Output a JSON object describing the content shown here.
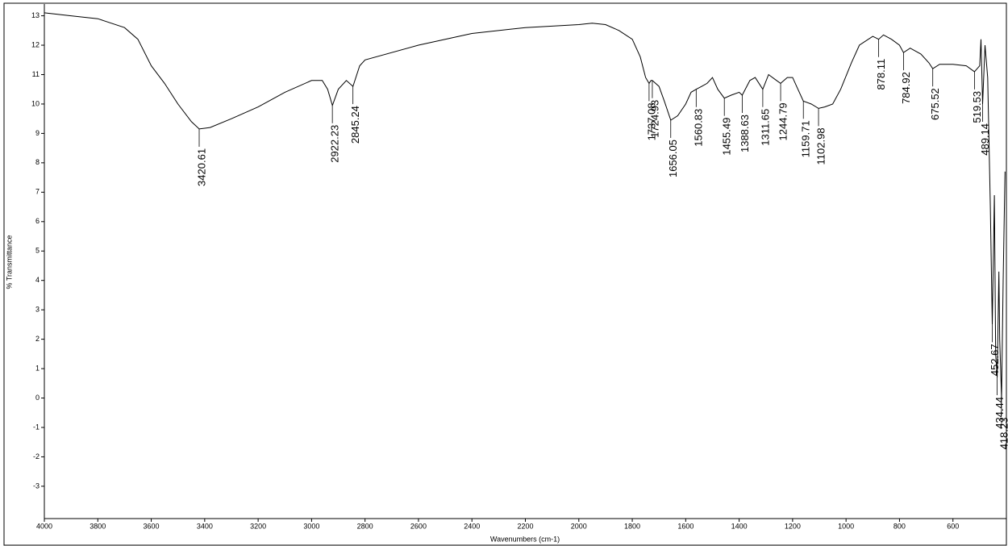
{
  "chart_data": {
    "type": "line",
    "x_label": "Wavenumbers (cm-1)",
    "y_label": "% Transmittance",
    "xlim": [
      4000,
      400
    ],
    "ylim": [
      -4.1,
      13.4
    ],
    "xticks": [
      4000,
      3800,
      3600,
      3400,
      3200,
      3000,
      2800,
      2600,
      2400,
      2200,
      2000,
      1800,
      1600,
      1400,
      1200,
      1000,
      800,
      600
    ],
    "yticks": [
      -3,
      -2,
      -1,
      0,
      1,
      2,
      3,
      4,
      5,
      6,
      7,
      8,
      9,
      10,
      11,
      12,
      13
    ],
    "color": "#000000",
    "x": [
      4000,
      3900,
      3800,
      3700,
      3650,
      3600,
      3550,
      3500,
      3450,
      3420.61,
      3380,
      3300,
      3200,
      3100,
      3000,
      2960,
      2940,
      2922.23,
      2900,
      2870,
      2845.24,
      2820,
      2800,
      2600,
      2400,
      2200,
      2000,
      1950,
      1900,
      1850,
      1800,
      1770,
      1750,
      1737.08,
      1730,
      1724.93,
      1700,
      1680,
      1656.05,
      1630,
      1600,
      1580,
      1560.83,
      1540,
      1520,
      1500,
      1480,
      1455.49,
      1430,
      1400,
      1388.63,
      1360,
      1340,
      1311.65,
      1290,
      1260,
      1244.79,
      1220,
      1200,
      1180,
      1159.71,
      1130,
      1102.98,
      1080,
      1050,
      1020,
      980,
      950,
      900,
      878.11,
      860,
      830,
      800,
      784.92,
      760,
      720,
      690,
      675.52,
      650,
      600,
      550,
      519.53,
      500,
      495,
      489.14,
      480,
      470,
      460,
      452.67,
      445,
      440,
      434.44,
      428,
      425,
      418.23,
      412,
      405
    ],
    "values": [
      13.1,
      13.0,
      12.9,
      12.6,
      12.2,
      11.3,
      10.7,
      10.0,
      9.4,
      9.15,
      9.2,
      9.5,
      9.9,
      10.4,
      10.8,
      10.8,
      10.5,
      9.95,
      10.5,
      10.8,
      10.6,
      11.3,
      11.5,
      12.0,
      12.4,
      12.6,
      12.7,
      12.75,
      12.7,
      12.5,
      12.2,
      11.6,
      10.9,
      10.7,
      10.8,
      10.8,
      10.6,
      10.1,
      9.45,
      9.6,
      10.0,
      10.4,
      10.5,
      10.6,
      10.7,
      10.9,
      10.5,
      10.2,
      10.3,
      10.4,
      10.3,
      10.8,
      10.9,
      10.5,
      11.0,
      10.8,
      10.7,
      10.9,
      10.9,
      10.5,
      10.1,
      10.0,
      9.85,
      9.9,
      10.0,
      10.5,
      11.4,
      12.0,
      12.3,
      12.2,
      12.35,
      12.2,
      12.0,
      11.75,
      11.9,
      11.7,
      11.4,
      11.2,
      11.35,
      11.35,
      11.3,
      11.1,
      11.3,
      12.2,
      10.0,
      12.0,
      10.9,
      6.5,
      2.5,
      6.9,
      1.5,
      0.7,
      4.3,
      2.0,
      0.0,
      4.0,
      7.7
    ],
    "peaks": [
      3420.61,
      2922.23,
      2845.24,
      1737.08,
      1724.93,
      1656.05,
      1560.83,
      1455.49,
      1388.63,
      1311.65,
      1244.79,
      1159.71,
      1102.98,
      878.11,
      784.92,
      675.52,
      519.53,
      489.14,
      452.67,
      434.44,
      418.23
    ]
  }
}
